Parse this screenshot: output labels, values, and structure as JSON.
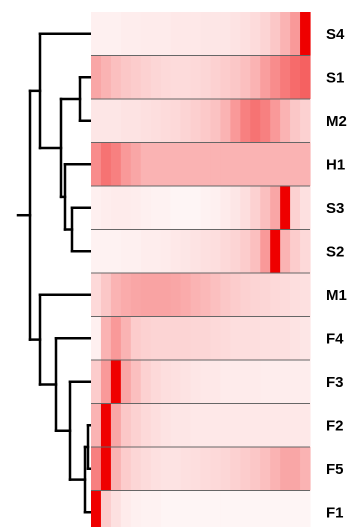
{
  "chart_data": {
    "type": "heatmap",
    "title": "",
    "xlabel": "",
    "ylabel": "",
    "color_low": "#ffffff",
    "color_high": "#ef0000",
    "rows": [
      "S4",
      "S1",
      "M2",
      "H1",
      "S3",
      "S2",
      "M1",
      "F4",
      "F3",
      "F2",
      "F5",
      "F1"
    ],
    "values": [
      [
        0.06,
        0.06,
        0.06,
        0.07,
        0.07,
        0.08,
        0.08,
        0.08,
        0.09,
        0.09,
        0.09,
        0.1,
        0.1,
        0.1,
        0.11,
        0.12,
        0.14,
        0.17,
        0.22,
        0.3,
        0.4,
        1.0
      ],
      [
        0.35,
        0.3,
        0.25,
        0.22,
        0.2,
        0.18,
        0.16,
        0.15,
        0.14,
        0.14,
        0.15,
        0.16,
        0.18,
        0.2,
        0.22,
        0.25,
        0.3,
        0.38,
        0.45,
        0.52,
        0.58,
        0.62
      ],
      [
        0.1,
        0.1,
        0.1,
        0.11,
        0.11,
        0.12,
        0.13,
        0.14,
        0.15,
        0.17,
        0.19,
        0.21,
        0.24,
        0.3,
        0.4,
        0.5,
        0.55,
        0.5,
        0.4,
        0.3,
        0.22,
        0.18
      ],
      [
        0.45,
        0.55,
        0.5,
        0.4,
        0.35,
        0.3,
        0.3,
        0.3,
        0.3,
        0.3,
        0.3,
        0.3,
        0.3,
        0.3,
        0.3,
        0.3,
        0.3,
        0.3,
        0.3,
        0.3,
        0.3,
        0.3
      ],
      [
        0.06,
        0.07,
        0.08,
        0.08,
        0.07,
        0.06,
        0.05,
        0.05,
        0.04,
        0.04,
        0.04,
        0.05,
        0.06,
        0.08,
        0.1,
        0.13,
        0.18,
        0.25,
        0.35,
        1.0,
        0.18,
        0.12
      ],
      [
        0.05,
        0.05,
        0.05,
        0.06,
        0.06,
        0.07,
        0.07,
        0.08,
        0.09,
        0.1,
        0.11,
        0.12,
        0.13,
        0.15,
        0.17,
        0.2,
        0.25,
        0.4,
        1.0,
        0.3,
        0.2,
        0.15
      ],
      [
        0.15,
        0.22,
        0.3,
        0.33,
        0.35,
        0.36,
        0.36,
        0.36,
        0.35,
        0.33,
        0.3,
        0.28,
        0.25,
        0.22,
        0.2,
        0.18,
        0.17,
        0.16,
        0.15,
        0.14,
        0.13,
        0.12
      ],
      [
        0.06,
        0.3,
        0.4,
        0.3,
        0.2,
        0.18,
        0.17,
        0.17,
        0.17,
        0.17,
        0.16,
        0.16,
        0.15,
        0.14,
        0.13,
        0.13,
        0.13,
        0.12,
        0.12,
        0.12,
        0.11,
        0.1
      ],
      [
        0.2,
        0.4,
        1.0,
        0.35,
        0.25,
        0.18,
        0.15,
        0.13,
        0.12,
        0.11,
        0.1,
        0.09,
        0.09,
        0.08,
        0.08,
        0.08,
        0.08,
        0.07,
        0.07,
        0.07,
        0.07,
        0.07
      ],
      [
        0.3,
        1.0,
        0.35,
        0.22,
        0.18,
        0.15,
        0.13,
        0.11,
        0.1,
        0.1,
        0.09,
        0.09,
        0.09,
        0.09,
        0.09,
        0.09,
        0.09,
        0.09,
        0.09,
        0.09,
        0.09,
        0.09
      ],
      [
        0.5,
        1.0,
        0.3,
        0.2,
        0.16,
        0.14,
        0.12,
        0.11,
        0.11,
        0.12,
        0.13,
        0.14,
        0.15,
        0.16,
        0.18,
        0.2,
        0.22,
        0.25,
        0.3,
        0.35,
        0.35,
        0.3
      ],
      [
        1.0,
        0.2,
        0.12,
        0.08,
        0.06,
        0.05,
        0.05,
        0.04,
        0.04,
        0.04,
        0.04,
        0.04,
        0.04,
        0.04,
        0.04,
        0.04,
        0.04,
        0.04,
        0.04,
        0.04,
        0.04,
        0.04
      ]
    ],
    "dendrogram": {
      "merges": [
        [
          "S1",
          "M2"
        ],
        [
          "S3",
          "S2"
        ],
        [
          "H1",
          "S3+S2"
        ],
        [
          "S1+M2",
          "H1+S3+S2"
        ],
        [
          "S4",
          "S1+M2+H1+S3+S2"
        ],
        [
          "F2",
          "F5"
        ],
        [
          "F2+F5",
          "F1"
        ],
        [
          "F3",
          "F2+F5+F1"
        ],
        [
          "F4",
          "F3+F2+F5+F1"
        ],
        [
          "M1",
          "F4+F3+F2+F5+F1"
        ],
        [
          "upper",
          "lower"
        ]
      ]
    }
  }
}
